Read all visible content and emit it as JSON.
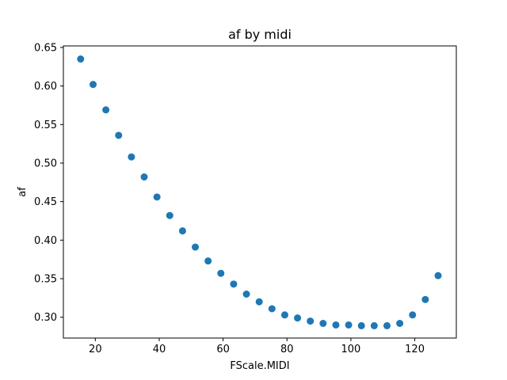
{
  "chart_data": {
    "type": "scatter",
    "title": "af by midi",
    "xlabel": "FScale.MIDI",
    "ylabel": "af",
    "xlim": [
      10,
      133
    ],
    "ylim": [
      0.273,
      0.652
    ],
    "xticks": [
      20,
      40,
      60,
      80,
      100,
      120
    ],
    "xtick_labels": [
      "20",
      "40",
      "60",
      "80",
      "100",
      "120"
    ],
    "yticks": [
      0.3,
      0.35,
      0.4,
      0.45,
      0.5,
      0.55,
      0.6,
      0.65
    ],
    "ytick_labels": [
      "0.30",
      "0.35",
      "0.40",
      "0.45",
      "0.50",
      "0.55",
      "0.60",
      "0.65"
    ],
    "grid": false,
    "marker_color": "#1f77b4",
    "points": [
      {
        "x": 15.4,
        "y": 0.635
      },
      {
        "x": 19.3,
        "y": 0.602
      },
      {
        "x": 23.3,
        "y": 0.569
      },
      {
        "x": 27.3,
        "y": 0.536
      },
      {
        "x": 31.3,
        "y": 0.508
      },
      {
        "x": 35.3,
        "y": 0.482
      },
      {
        "x": 39.3,
        "y": 0.456
      },
      {
        "x": 43.3,
        "y": 0.432
      },
      {
        "x": 47.3,
        "y": 0.412
      },
      {
        "x": 51.3,
        "y": 0.391
      },
      {
        "x": 55.3,
        "y": 0.373
      },
      {
        "x": 59.3,
        "y": 0.357
      },
      {
        "x": 63.3,
        "y": 0.343
      },
      {
        "x": 67.3,
        "y": 0.33
      },
      {
        "x": 71.3,
        "y": 0.32
      },
      {
        "x": 75.3,
        "y": 0.311
      },
      {
        "x": 79.3,
        "y": 0.303
      },
      {
        "x": 83.3,
        "y": 0.299
      },
      {
        "x": 87.3,
        "y": 0.295
      },
      {
        "x": 91.3,
        "y": 0.292
      },
      {
        "x": 95.3,
        "y": 0.29
      },
      {
        "x": 99.3,
        "y": 0.29
      },
      {
        "x": 103.3,
        "y": 0.289
      },
      {
        "x": 107.3,
        "y": 0.289
      },
      {
        "x": 111.3,
        "y": 0.289
      },
      {
        "x": 115.3,
        "y": 0.292
      },
      {
        "x": 119.3,
        "y": 0.303
      },
      {
        "x": 123.3,
        "y": 0.323
      },
      {
        "x": 127.3,
        "y": 0.354
      }
    ]
  }
}
